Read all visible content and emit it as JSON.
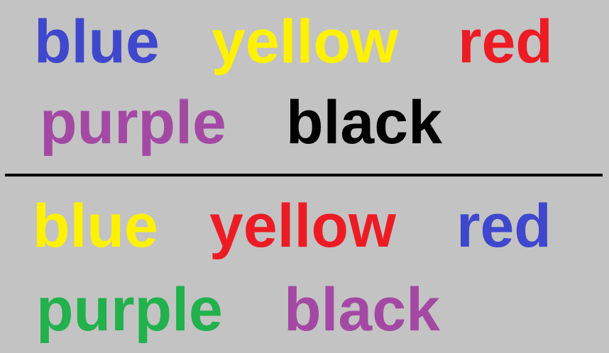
{
  "colors": {
    "background": "#c3c3c3",
    "blue": "#3f48cc",
    "yellow": "#fff200",
    "red": "#ed1c24",
    "purple": "#a349a4",
    "black": "#000000",
    "green": "#22b14c"
  },
  "top_section": {
    "words": [
      {
        "text": "blue",
        "ink": "blue"
      },
      {
        "text": "yellow",
        "ink": "yellow"
      },
      {
        "text": "red",
        "ink": "red"
      },
      {
        "text": "purple",
        "ink": "purple"
      },
      {
        "text": "black",
        "ink": "black"
      }
    ]
  },
  "bottom_section": {
    "words": [
      {
        "text": "blue",
        "ink": "yellow"
      },
      {
        "text": "yellow",
        "ink": "red"
      },
      {
        "text": "red",
        "ink": "blue"
      },
      {
        "text": "purple",
        "ink": "green"
      },
      {
        "text": "black",
        "ink": "purple"
      }
    ]
  }
}
